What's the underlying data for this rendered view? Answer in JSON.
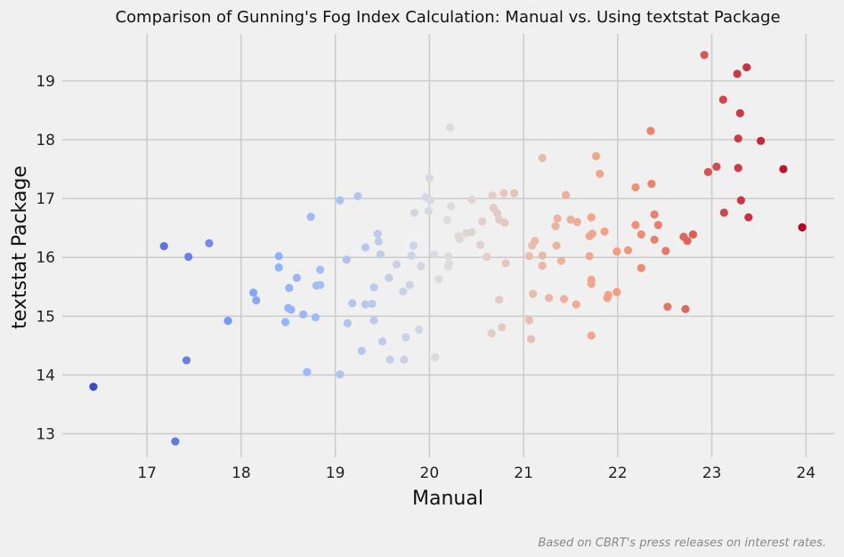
{
  "chart_data": {
    "type": "scatter",
    "title": "Comparison of Gunning's Fog Index Calculation: Manual vs. Using textstat Package",
    "xlabel": "Manual",
    "ylabel": "textstat Package",
    "xlim": [
      16.1,
      24.3
    ],
    "ylim": [
      12.6,
      19.8
    ],
    "xticks": [
      17,
      18,
      19,
      20,
      21,
      22,
      23,
      24
    ],
    "yticks": [
      13,
      14,
      15,
      16,
      17,
      18,
      19
    ],
    "grid": true,
    "colormap": "coolwarm",
    "color_by": "x",
    "caption": "Based on CBRT's press releases on interest rates.",
    "points": [
      [
        16.43,
        13.8
      ],
      [
        17.18,
        16.19
      ],
      [
        17.3,
        12.87
      ],
      [
        17.42,
        14.25
      ],
      [
        17.44,
        16.01
      ],
      [
        17.66,
        16.24
      ],
      [
        17.86,
        14.92
      ],
      [
        18.13,
        15.4
      ],
      [
        18.16,
        15.27
      ],
      [
        18.4,
        16.02
      ],
      [
        18.4,
        15.83
      ],
      [
        18.47,
        14.9
      ],
      [
        18.5,
        15.14
      ],
      [
        18.51,
        15.48
      ],
      [
        18.53,
        15.11
      ],
      [
        18.59,
        15.65
      ],
      [
        18.66,
        15.03
      ],
      [
        18.7,
        14.05
      ],
      [
        18.74,
        16.69
      ],
      [
        18.79,
        14.98
      ],
      [
        18.8,
        15.52
      ],
      [
        18.84,
        15.79
      ],
      [
        18.84,
        15.53
      ],
      [
        19.05,
        16.97
      ],
      [
        19.05,
        14.01
      ],
      [
        19.12,
        15.96
      ],
      [
        19.13,
        14.88
      ],
      [
        19.18,
        15.22
      ],
      [
        19.24,
        17.04
      ],
      [
        19.28,
        14.41
      ],
      [
        19.32,
        16.17
      ],
      [
        19.32,
        15.2
      ],
      [
        19.39,
        15.21
      ],
      [
        19.41,
        15.49
      ],
      [
        19.41,
        14.93
      ],
      [
        19.45,
        16.4
      ],
      [
        19.46,
        16.27
      ],
      [
        19.48,
        16.05
      ],
      [
        19.5,
        14.57
      ],
      [
        19.57,
        15.65
      ],
      [
        19.58,
        14.26
      ],
      [
        19.65,
        15.88
      ],
      [
        19.72,
        15.42
      ],
      [
        19.73,
        14.26
      ],
      [
        19.75,
        14.64
      ],
      [
        19.79,
        15.53
      ],
      [
        19.81,
        16.03
      ],
      [
        19.83,
        16.2
      ],
      [
        19.84,
        16.76
      ],
      [
        19.89,
        14.77
      ],
      [
        19.91,
        15.85
      ],
      [
        19.96,
        17.02
      ],
      [
        19.99,
        16.79
      ],
      [
        20.0,
        17.35
      ],
      [
        20.01,
        16.97
      ],
      [
        20.05,
        16.05
      ],
      [
        20.06,
        14.3
      ],
      [
        20.1,
        15.63
      ],
      [
        20.19,
        16.63
      ],
      [
        20.2,
        15.84
      ],
      [
        20.2,
        16.02
      ],
      [
        20.21,
        15.9
      ],
      [
        20.22,
        18.21
      ],
      [
        20.23,
        16.87
      ],
      [
        20.31,
        16.36
      ],
      [
        20.32,
        16.31
      ],
      [
        20.39,
        16.41
      ],
      [
        20.45,
        16.43
      ],
      [
        20.45,
        16.98
      ],
      [
        20.54,
        16.21
      ],
      [
        20.56,
        16.61
      ],
      [
        20.61,
        16.01
      ],
      [
        20.66,
        14.71
      ],
      [
        20.67,
        17.05
      ],
      [
        20.68,
        16.84
      ],
      [
        20.72,
        16.75
      ],
      [
        20.74,
        15.28
      ],
      [
        20.74,
        16.64
      ],
      [
        20.77,
        14.81
      ],
      [
        20.79,
        17.09
      ],
      [
        20.8,
        16.59
      ],
      [
        20.81,
        15.9
      ],
      [
        20.9,
        17.09
      ],
      [
        21.06,
        16.02
      ],
      [
        21.06,
        14.93
      ],
      [
        21.08,
        14.61
      ],
      [
        21.09,
        16.2
      ],
      [
        21.1,
        15.38
      ],
      [
        21.12,
        16.28
      ],
      [
        21.2,
        16.03
      ],
      [
        21.2,
        15.86
      ],
      [
        21.2,
        17.69
      ],
      [
        21.27,
        15.31
      ],
      [
        21.34,
        16.53
      ],
      [
        21.35,
        16.2
      ],
      [
        21.36,
        16.66
      ],
      [
        21.4,
        15.94
      ],
      [
        21.43,
        15.29
      ],
      [
        21.45,
        17.06
      ],
      [
        21.5,
        16.64
      ],
      [
        21.56,
        15.2
      ],
      [
        21.57,
        16.6
      ],
      [
        21.7,
        16.36
      ],
      [
        21.7,
        16.02
      ],
      [
        21.72,
        15.62
      ],
      [
        21.72,
        15.55
      ],
      [
        21.72,
        14.67
      ],
      [
        21.72,
        16.68
      ],
      [
        21.73,
        16.4
      ],
      [
        21.77,
        17.72
      ],
      [
        21.81,
        17.42
      ],
      [
        21.86,
        16.44
      ],
      [
        21.89,
        15.31
      ],
      [
        21.9,
        15.36
      ],
      [
        21.99,
        15.41
      ],
      [
        21.99,
        16.1
      ],
      [
        22.11,
        16.12
      ],
      [
        22.19,
        17.19
      ],
      [
        22.19,
        16.55
      ],
      [
        22.25,
        16.39
      ],
      [
        22.25,
        15.82
      ],
      [
        22.35,
        18.15
      ],
      [
        22.36,
        17.25
      ],
      [
        22.39,
        16.3
      ],
      [
        22.39,
        16.73
      ],
      [
        22.43,
        16.55
      ],
      [
        22.51,
        16.11
      ],
      [
        22.53,
        15.16
      ],
      [
        22.7,
        16.35
      ],
      [
        22.72,
        15.12
      ],
      [
        22.74,
        16.28
      ],
      [
        22.8,
        16.39
      ],
      [
        22.92,
        19.44
      ],
      [
        22.96,
        17.45
      ],
      [
        23.05,
        17.54
      ],
      [
        23.12,
        18.68
      ],
      [
        23.13,
        16.76
      ],
      [
        23.27,
        19.12
      ],
      [
        23.28,
        18.02
      ],
      [
        23.28,
        17.52
      ],
      [
        23.3,
        18.45
      ],
      [
        23.31,
        16.97
      ],
      [
        23.37,
        19.23
      ],
      [
        23.39,
        16.68
      ],
      [
        23.52,
        17.98
      ],
      [
        23.76,
        17.5
      ],
      [
        23.96,
        16.51
      ]
    ]
  }
}
